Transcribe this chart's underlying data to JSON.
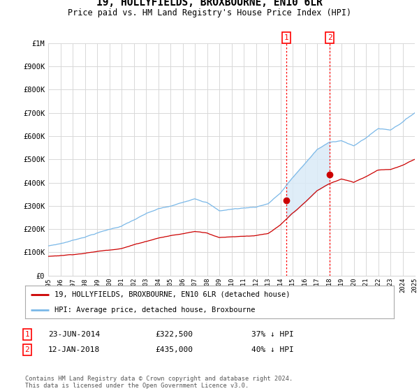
{
  "title": "19, HOLLYFIELDS, BROXBOURNE, EN10 6LR",
  "subtitle": "Price paid vs. HM Land Registry's House Price Index (HPI)",
  "ylim": [
    0,
    1000000
  ],
  "yticks": [
    0,
    100000,
    200000,
    300000,
    400000,
    500000,
    600000,
    700000,
    800000,
    900000,
    1000000
  ],
  "ytick_labels": [
    "£0",
    "£100K",
    "£200K",
    "£300K",
    "£400K",
    "£500K",
    "£600K",
    "£700K",
    "£800K",
    "£900K",
    "£1M"
  ],
  "background_color": "#ffffff",
  "grid_color": "#d8d8d8",
  "hpi_color": "#7ab8e8",
  "hpi_fill_color": "#daeaf7",
  "price_color": "#cc0000",
  "sale1_date": 2014.48,
  "sale1_price": 322500,
  "sale2_date": 2018.04,
  "sale2_price": 435000,
  "sale1_label": "1",
  "sale2_label": "2",
  "legend_line1": "19, HOLLYFIELDS, BROXBOURNE, EN10 6LR (detached house)",
  "legend_line2": "HPI: Average price, detached house, Broxbourne",
  "table_row1": [
    "1",
    "23-JUN-2014",
    "£322,500",
    "37% ↓ HPI"
  ],
  "table_row2": [
    "2",
    "12-JAN-2018",
    "£435,000",
    "40% ↓ HPI"
  ],
  "footnote": "Contains HM Land Registry data © Crown copyright and database right 2024.\nThis data is licensed under the Open Government Licence v3.0.",
  "x_start_year": 1995,
  "x_end_year": 2025,
  "hpi_key_years": [
    1995,
    1996,
    1997,
    1998,
    1999,
    2000,
    2001,
    2002,
    2003,
    2004,
    2005,
    2006,
    2007,
    2008,
    2009,
    2010,
    2011,
    2012,
    2013,
    2014,
    2015,
    2016,
    2017,
    2018,
    2019,
    2020,
    2021,
    2022,
    2023,
    2024,
    2025
  ],
  "hpi_key_values": [
    128000,
    138000,
    152000,
    168000,
    185000,
    200000,
    215000,
    240000,
    265000,
    285000,
    295000,
    310000,
    330000,
    315000,
    278000,
    285000,
    290000,
    295000,
    310000,
    355000,
    420000,
    480000,
    540000,
    570000,
    580000,
    555000,
    590000,
    630000,
    625000,
    660000,
    700000
  ],
  "price_key_years": [
    1995,
    1996,
    1997,
    1998,
    1999,
    2000,
    2001,
    2002,
    2003,
    2004,
    2005,
    2006,
    2007,
    2008,
    2009,
    2010,
    2011,
    2012,
    2013,
    2014,
    2015,
    2016,
    2017,
    2018,
    2019,
    2020,
    2021,
    2022,
    2023,
    2024,
    2025
  ],
  "price_key_values": [
    83000,
    87000,
    92000,
    98000,
    105000,
    112000,
    120000,
    135000,
    150000,
    165000,
    175000,
    183000,
    193000,
    188000,
    168000,
    172000,
    175000,
    178000,
    185000,
    220000,
    270000,
    315000,
    365000,
    395000,
    415000,
    400000,
    425000,
    455000,
    458000,
    475000,
    500000
  ]
}
